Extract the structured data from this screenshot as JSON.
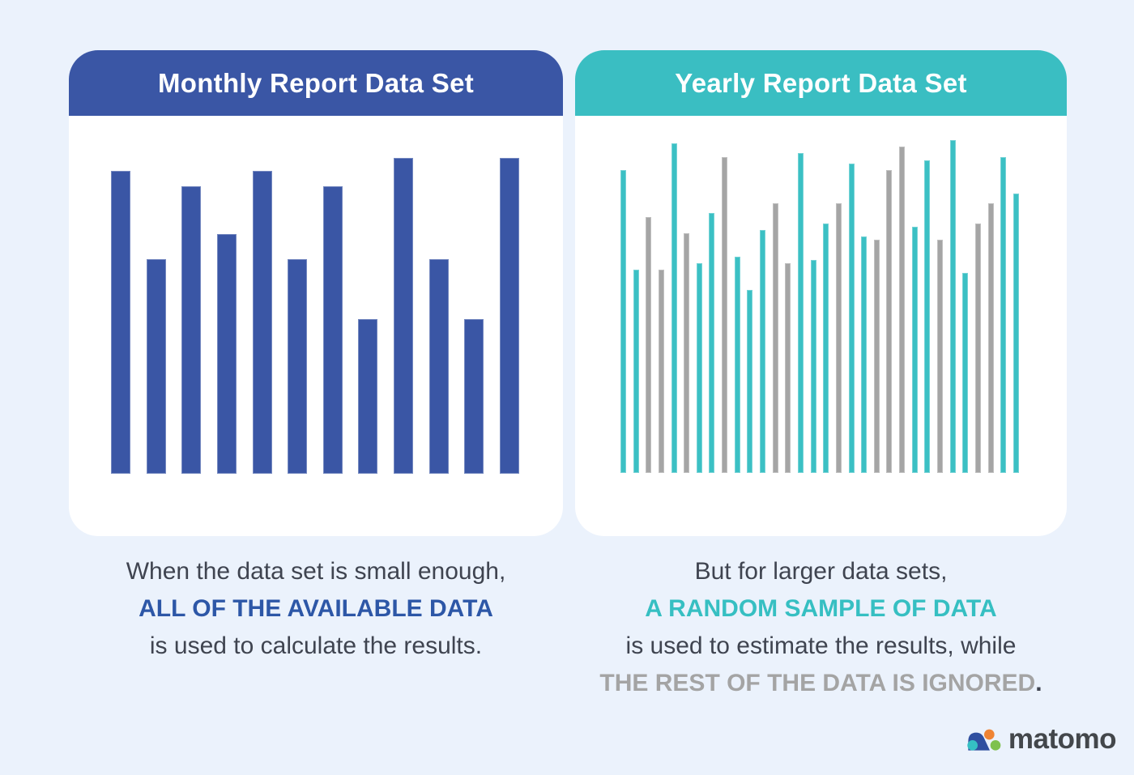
{
  "page": {
    "background_color": "#ebf2fc",
    "card_background": "#ffffff"
  },
  "cards": {
    "monthly": {
      "title": "Monthly Report Data Set",
      "header_color": "#3a56a5"
    },
    "yearly": {
      "title": "Yearly Report Data Set",
      "header_color": "#3abec2"
    }
  },
  "chart_data": [
    {
      "type": "bar",
      "title": "Monthly Report Data Set",
      "units": "percent of tallest bar (illustrative chart, no axes or tick labels shown)",
      "palette": {
        "blue": "#3a56a5"
      },
      "color": "blue",
      "values": [
        96,
        68,
        91,
        76,
        96,
        68,
        91,
        49,
        100,
        68,
        49,
        100
      ],
      "grid": false,
      "legend": "none"
    },
    {
      "type": "bar",
      "title": "Yearly Report Data Set",
      "units": "percent of tallest bar (illustrative chart, no axes or tick labels shown)",
      "palette": {
        "teal": "#3bc0c4",
        "gray": "#a5a5a5"
      },
      "color_sequence": [
        "teal",
        "teal",
        "gray",
        "gray",
        "teal",
        "gray",
        "teal",
        "teal",
        "gray",
        "teal",
        "teal",
        "teal",
        "gray",
        "gray",
        "teal",
        "teal",
        "teal",
        "gray",
        "teal",
        "teal",
        "gray",
        "gray",
        "gray",
        "teal",
        "teal",
        "gray",
        "teal",
        "teal",
        "gray",
        "gray",
        "teal",
        "teal"
      ],
      "values": [
        91,
        61,
        77,
        61,
        99,
        72,
        63,
        78,
        95,
        65,
        55,
        73,
        81,
        63,
        96,
        64,
        75,
        81,
        93,
        71,
        70,
        91,
        98,
        74,
        94,
        70,
        100,
        60,
        75,
        81,
        95,
        84
      ],
      "grid": false,
      "legend": "none"
    }
  ],
  "captions": {
    "monthly": {
      "line1": "When the data set is small enough,",
      "line2": "ALL OF THE AVAILABLE DATA",
      "line3": "is used to calculate the results.",
      "accent_color": "#2d57a7",
      "text_color": "#3f4450"
    },
    "yearly": {
      "line1": "But for larger data sets,",
      "line2": "A RANDOM SAMPLE OF DATA",
      "line3": "is used to estimate the results, while",
      "line4": "THE REST OF THE DATA IS IGNORED",
      "line4_period": ".",
      "accent_color": "#36bfc2",
      "muted_color": "#a4a4a4",
      "text_color": "#3f4450"
    }
  },
  "logo": {
    "wordmark": "matomo",
    "wordmark_color": "#43474b",
    "icon_colors": {
      "teal": "#35bfc3",
      "blue": "#2f4fa0",
      "orange": "#f08434",
      "green": "#7ec14d"
    }
  }
}
